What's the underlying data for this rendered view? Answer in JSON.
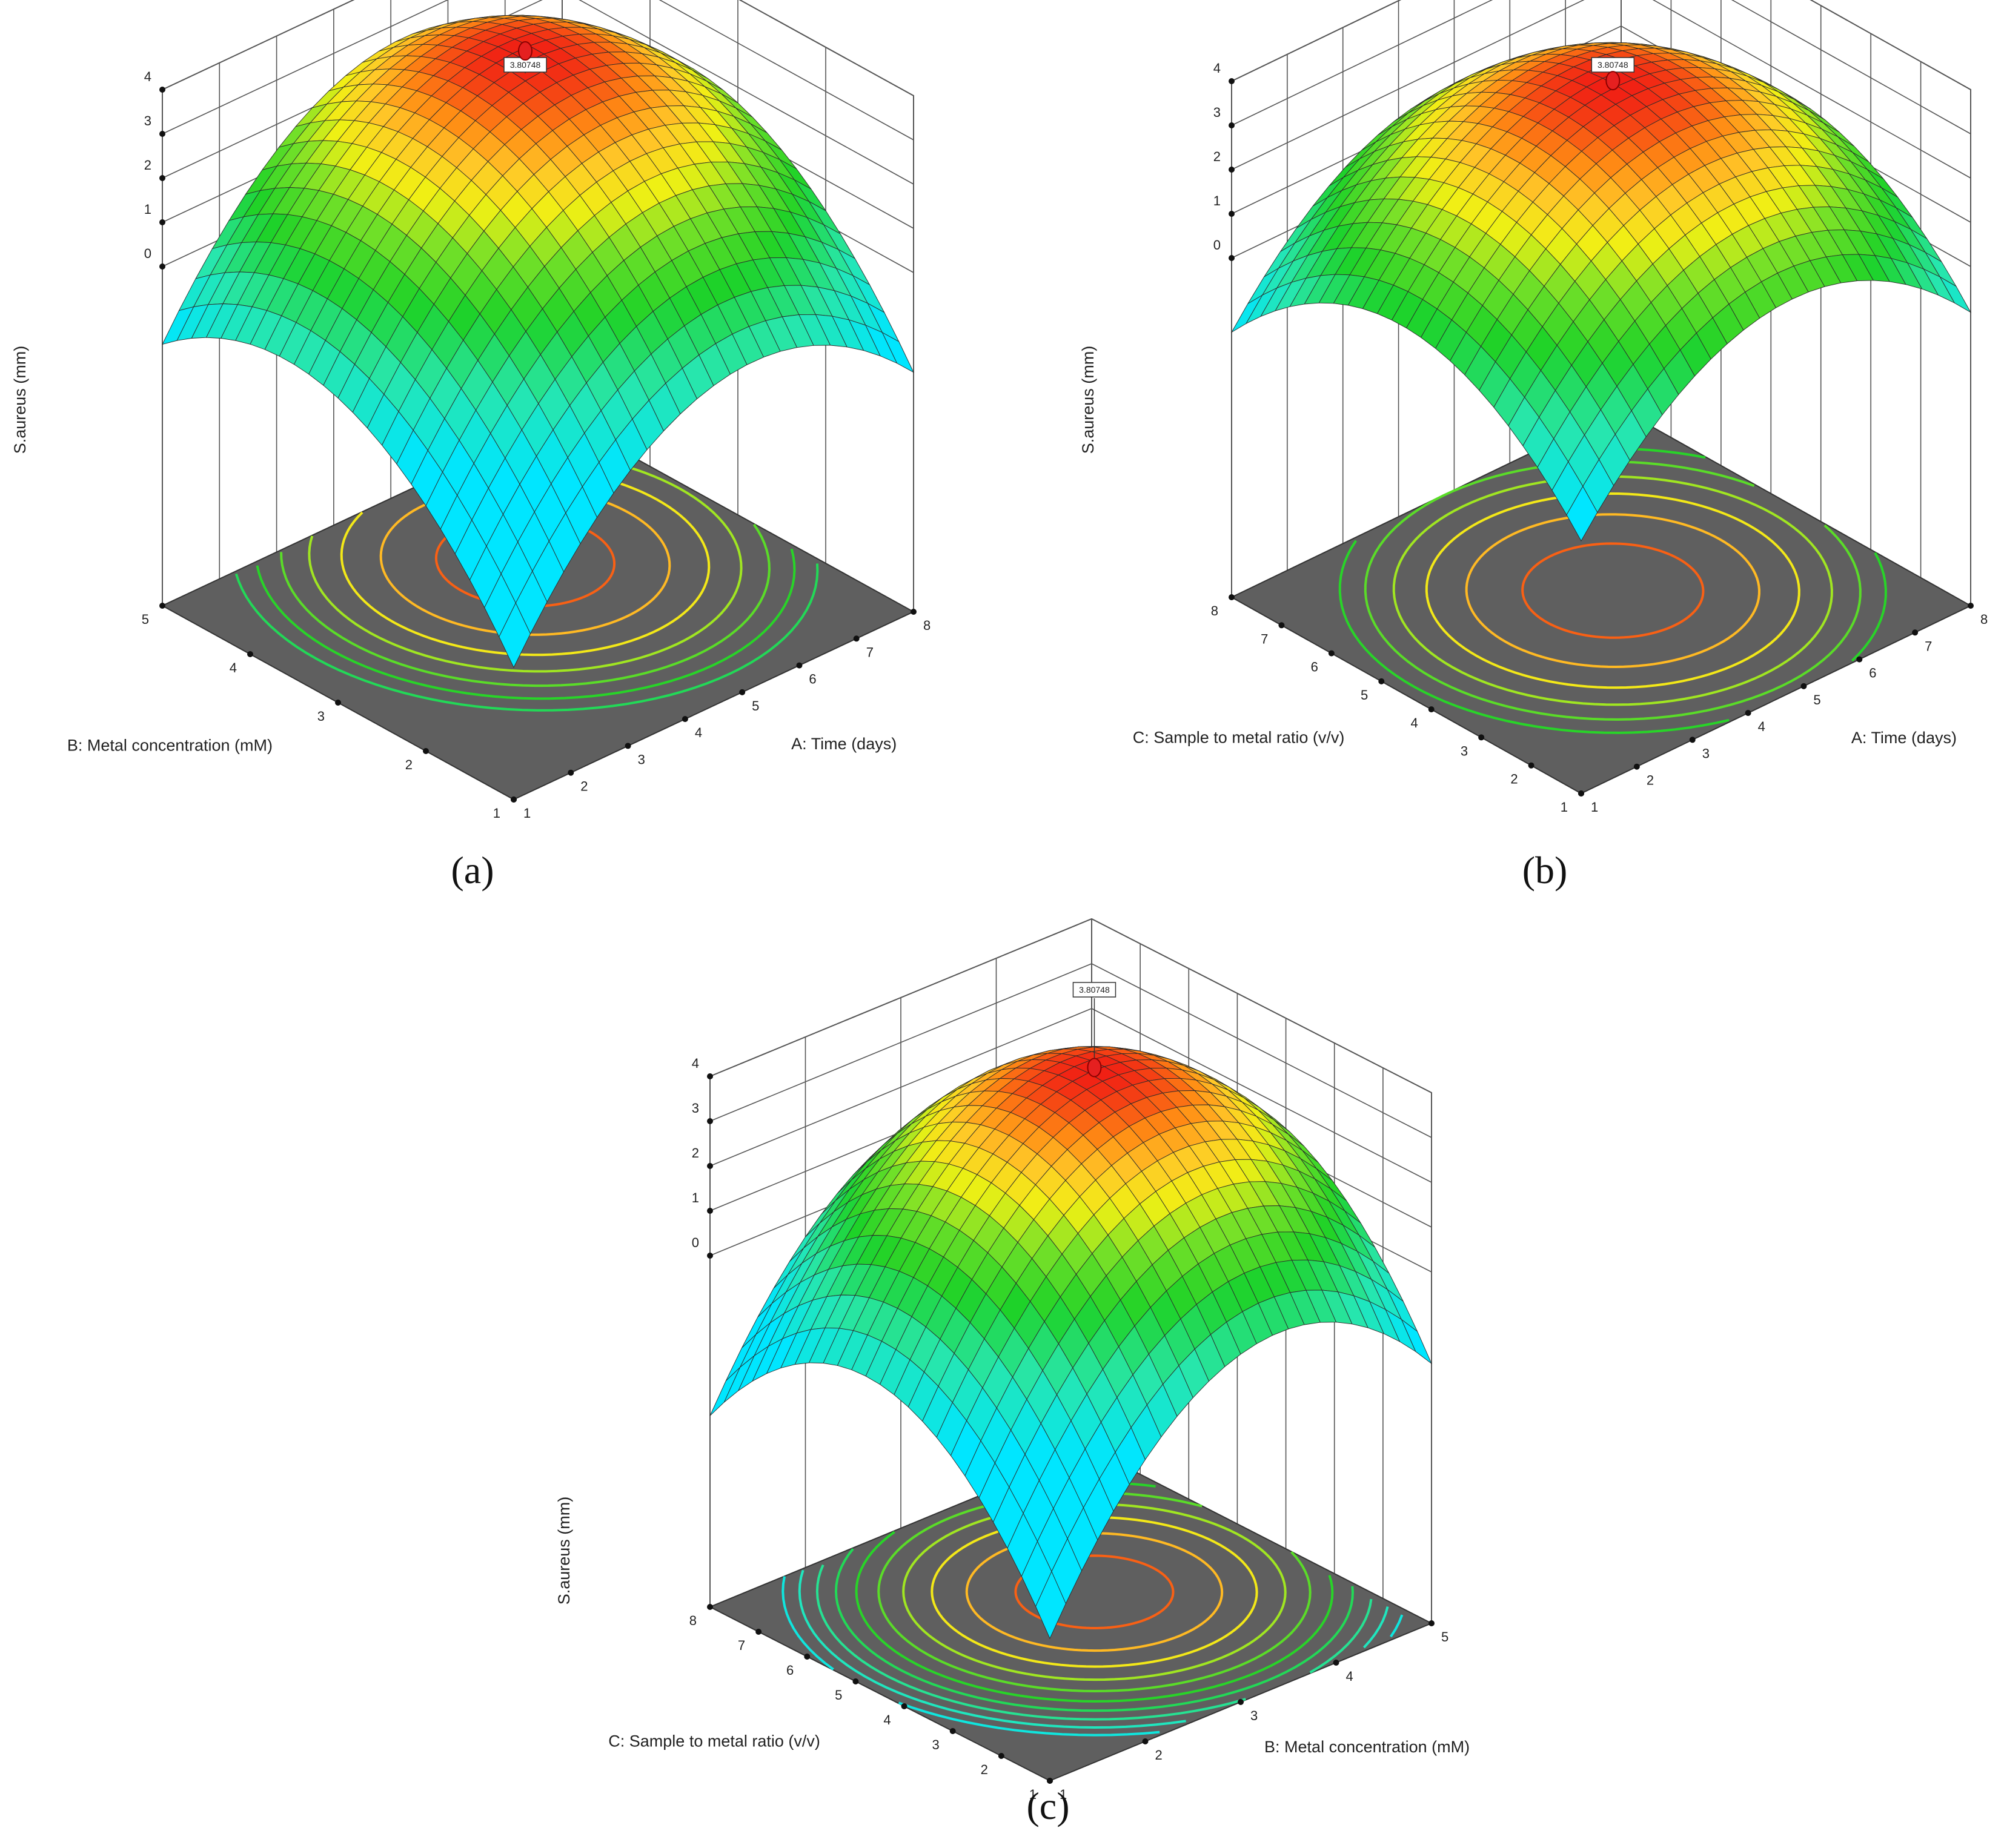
{
  "chart_data": [
    {
      "type": "surface3d",
      "caption": "(a)",
      "zlabel": "S.aureus (mm)",
      "xlabel": "A: Time (days)",
      "ylabel": "B: Metal concentration (mM)",
      "x_range": [
        1,
        8
      ],
      "y_range": [
        1,
        5
      ],
      "z_range": [
        0,
        4
      ],
      "x_ticks": [
        "1",
        "2",
        "3",
        "4",
        "5",
        "6",
        "7",
        "8"
      ],
      "y_ticks": [
        "1",
        "2",
        "3",
        "4",
        "5"
      ],
      "z_ticks": [
        "0",
        "1",
        "2",
        "3",
        "4"
      ],
      "max_point": {
        "x": 5.2,
        "y": 3.6,
        "z": 3.80748
      },
      "max_label": "3.80748",
      "corner_values": {
        "x1_y1": 0.1,
        "x8_y1": 1.2,
        "x1_y5": 2.2,
        "x8_y5": 1.5
      },
      "contour_levels": [
        0.5,
        1.0,
        1.5,
        2.0,
        2.5,
        3.0,
        3.5
      ],
      "grid": true
    },
    {
      "type": "surface3d",
      "caption": "(b)",
      "zlabel": "S.aureus (mm)",
      "xlabel": "A: Time (days)",
      "ylabel": "C: Sample to metal ratio (v/v)",
      "x_range": [
        1,
        8
      ],
      "y_range": [
        1,
        8
      ],
      "z_range": [
        0,
        4
      ],
      "x_ticks": [
        "1",
        "2",
        "3",
        "4",
        "5",
        "6",
        "7",
        "8"
      ],
      "y_ticks": [
        "1",
        "2",
        "3",
        "4",
        "5",
        "6",
        "7",
        "8"
      ],
      "z_ticks": [
        "0",
        "1",
        "2",
        "3",
        "4"
      ],
      "max_point": {
        "x": 4.8,
        "y": 4.6,
        "z": 3.80748
      },
      "max_label": "3.80748",
      "corner_values": {
        "x1_y1": 0.7,
        "x8_y1": 1.5,
        "x1_y8": 2.0,
        "x8_y8": 1.9
      },
      "contour_levels": [
        1.0,
        1.5,
        2.0,
        2.5,
        3.0,
        3.5
      ],
      "grid": true
    },
    {
      "type": "surface3d",
      "caption": "(c)",
      "zlabel": "S.aureus (mm)",
      "xlabel": "B: Metal concentration (mM)",
      "ylabel": "C: Sample to metal ratio (v/v)",
      "x_range": [
        1,
        5
      ],
      "y_range": [
        1,
        8
      ],
      "z_range": [
        0,
        4
      ],
      "x_ticks": [
        "1",
        "2",
        "3",
        "4",
        "5"
      ],
      "y_ticks": [
        "1",
        "2",
        "3",
        "4",
        "5",
        "6",
        "7",
        "8"
      ],
      "z_ticks": [
        "0",
        "1",
        "2",
        "3",
        "4"
      ],
      "max_point": {
        "x": 3.4,
        "y": 4.8,
        "z": 3.80748
      },
      "max_label": "3.80748",
      "corner_values": {
        "x1_y1": -1.4,
        "x5_y1": 2.2,
        "x1_y8": 2.6,
        "x5_y8": 3.1
      },
      "contour_levels": [
        -1.0,
        -0.5,
        0.0,
        0.5,
        1.0,
        1.5,
        2.0,
        2.5,
        3.0,
        3.5
      ],
      "grid": true
    }
  ]
}
